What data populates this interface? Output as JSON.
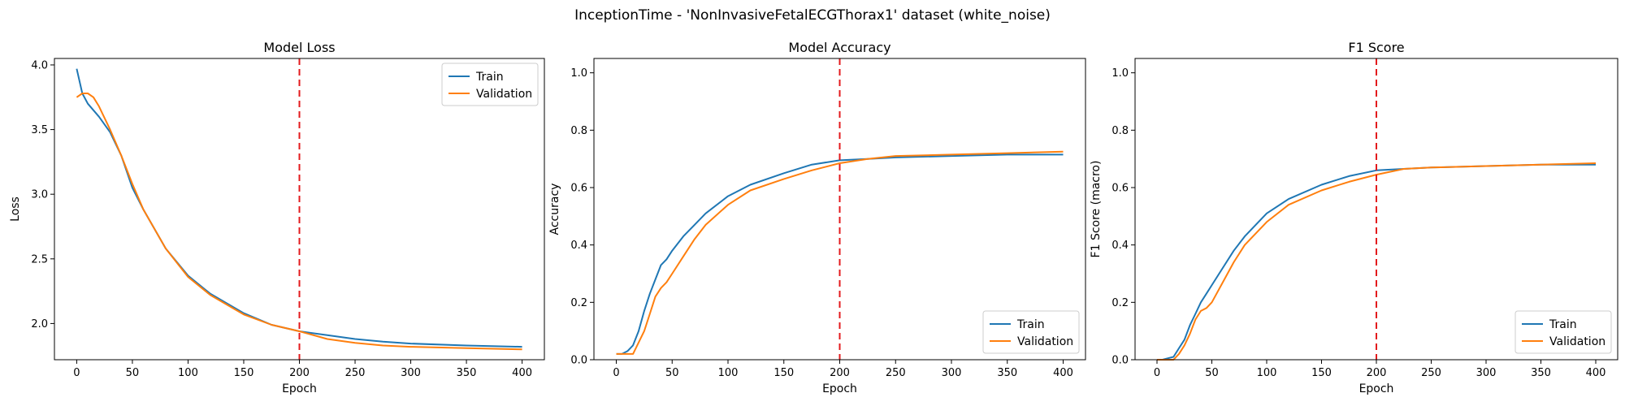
{
  "figure": {
    "suptitle": "InceptionTime - 'NonInvasiveFetalECGThorax1' dataset (white_noise)"
  },
  "colors": {
    "train": "#1f77b4",
    "validation": "#ff7f0e",
    "marker_line": "#e31a1c"
  },
  "chart_data": [
    {
      "type": "line",
      "title": "Model Loss",
      "xlabel": "Epoch",
      "ylabel": "Loss",
      "xlim": [
        -20,
        420
      ],
      "ylim": [
        1.72,
        4.05
      ],
      "xticks": [
        0,
        50,
        100,
        150,
        200,
        250,
        300,
        350,
        400
      ],
      "yticks": [
        2.0,
        2.5,
        3.0,
        3.5,
        4.0
      ],
      "ytick_labels": [
        "2.0",
        "2.5",
        "3.0",
        "3.5",
        "4.0"
      ],
      "vline_x": 200,
      "legend": {
        "position": "upper right",
        "entries": [
          "Train",
          "Validation"
        ]
      },
      "series": [
        {
          "name": "Train",
          "x": [
            0,
            5,
            10,
            20,
            30,
            40,
            50,
            60,
            80,
            100,
            120,
            150,
            175,
            200,
            225,
            250,
            275,
            300,
            350,
            400
          ],
          "y": [
            3.97,
            3.78,
            3.7,
            3.6,
            3.48,
            3.3,
            3.05,
            2.88,
            2.58,
            2.37,
            2.23,
            2.08,
            1.99,
            1.94,
            1.91,
            1.88,
            1.86,
            1.845,
            1.83,
            1.82
          ]
        },
        {
          "name": "Validation",
          "x": [
            0,
            5,
            10,
            15,
            20,
            30,
            40,
            50,
            60,
            80,
            100,
            120,
            150,
            175,
            200,
            225,
            250,
            275,
            300,
            350,
            400
          ],
          "y": [
            3.75,
            3.78,
            3.78,
            3.75,
            3.68,
            3.5,
            3.3,
            3.08,
            2.88,
            2.58,
            2.36,
            2.22,
            2.07,
            1.99,
            1.94,
            1.88,
            1.85,
            1.83,
            1.82,
            1.81,
            1.8
          ]
        }
      ]
    },
    {
      "type": "line",
      "title": "Model Accuracy",
      "xlabel": "Epoch",
      "ylabel": "Accuracy",
      "xlim": [
        -20,
        420
      ],
      "ylim": [
        0.0,
        1.05
      ],
      "xticks": [
        0,
        50,
        100,
        150,
        200,
        250,
        300,
        350,
        400
      ],
      "yticks": [
        0.0,
        0.2,
        0.4,
        0.6,
        0.8,
        1.0
      ],
      "ytick_labels": [
        "0.0",
        "0.2",
        "0.4",
        "0.6",
        "0.8",
        "1.0"
      ],
      "vline_x": 200,
      "legend": {
        "position": "lower right",
        "entries": [
          "Train",
          "Validation"
        ]
      },
      "series": [
        {
          "name": "Train",
          "x": [
            0,
            5,
            10,
            15,
            20,
            25,
            30,
            35,
            40,
            45,
            50,
            60,
            70,
            80,
            100,
            120,
            150,
            175,
            200,
            225,
            250,
            300,
            350,
            400
          ],
          "y": [
            0.02,
            0.02,
            0.03,
            0.05,
            0.1,
            0.17,
            0.23,
            0.28,
            0.33,
            0.35,
            0.38,
            0.43,
            0.47,
            0.51,
            0.57,
            0.61,
            0.65,
            0.68,
            0.695,
            0.7,
            0.705,
            0.71,
            0.715,
            0.715
          ]
        },
        {
          "name": "Validation",
          "x": [
            0,
            5,
            10,
            15,
            20,
            25,
            30,
            35,
            40,
            45,
            50,
            60,
            70,
            80,
            100,
            120,
            150,
            175,
            200,
            225,
            250,
            300,
            350,
            400
          ],
          "y": [
            0.02,
            0.02,
            0.02,
            0.02,
            0.06,
            0.1,
            0.16,
            0.22,
            0.25,
            0.27,
            0.3,
            0.36,
            0.42,
            0.47,
            0.54,
            0.59,
            0.63,
            0.66,
            0.685,
            0.7,
            0.71,
            0.715,
            0.72,
            0.725
          ]
        }
      ]
    },
    {
      "type": "line",
      "title": "F1 Score",
      "xlabel": "Epoch",
      "ylabel": "F1 Score (macro)",
      "xlim": [
        -20,
        420
      ],
      "ylim": [
        0.0,
        1.05
      ],
      "xticks": [
        0,
        50,
        100,
        150,
        200,
        250,
        300,
        350,
        400
      ],
      "yticks": [
        0.0,
        0.2,
        0.4,
        0.6,
        0.8,
        1.0
      ],
      "ytick_labels": [
        "0.0",
        "0.2",
        "0.4",
        "0.6",
        "0.8",
        "1.0"
      ],
      "vline_x": 200,
      "legend": {
        "position": "lower right",
        "entries": [
          "Train",
          "Validation"
        ]
      },
      "series": [
        {
          "name": "Train",
          "x": [
            0,
            5,
            10,
            15,
            20,
            25,
            30,
            35,
            40,
            45,
            50,
            60,
            70,
            80,
            100,
            120,
            150,
            175,
            200,
            225,
            250,
            300,
            350,
            400
          ],
          "y": [
            0.0,
            0.0,
            0.005,
            0.01,
            0.04,
            0.07,
            0.12,
            0.16,
            0.2,
            0.23,
            0.26,
            0.32,
            0.38,
            0.43,
            0.51,
            0.56,
            0.61,
            0.64,
            0.66,
            0.665,
            0.67,
            0.675,
            0.68,
            0.68
          ]
        },
        {
          "name": "Validation",
          "x": [
            0,
            5,
            10,
            15,
            20,
            25,
            30,
            35,
            40,
            45,
            50,
            60,
            70,
            80,
            100,
            120,
            150,
            175,
            200,
            225,
            250,
            300,
            350,
            400
          ],
          "y": [
            0.0,
            0.0,
            0.0,
            0.0,
            0.02,
            0.05,
            0.09,
            0.14,
            0.17,
            0.18,
            0.2,
            0.27,
            0.34,
            0.4,
            0.48,
            0.54,
            0.59,
            0.62,
            0.645,
            0.665,
            0.67,
            0.675,
            0.68,
            0.685
          ]
        }
      ]
    }
  ]
}
